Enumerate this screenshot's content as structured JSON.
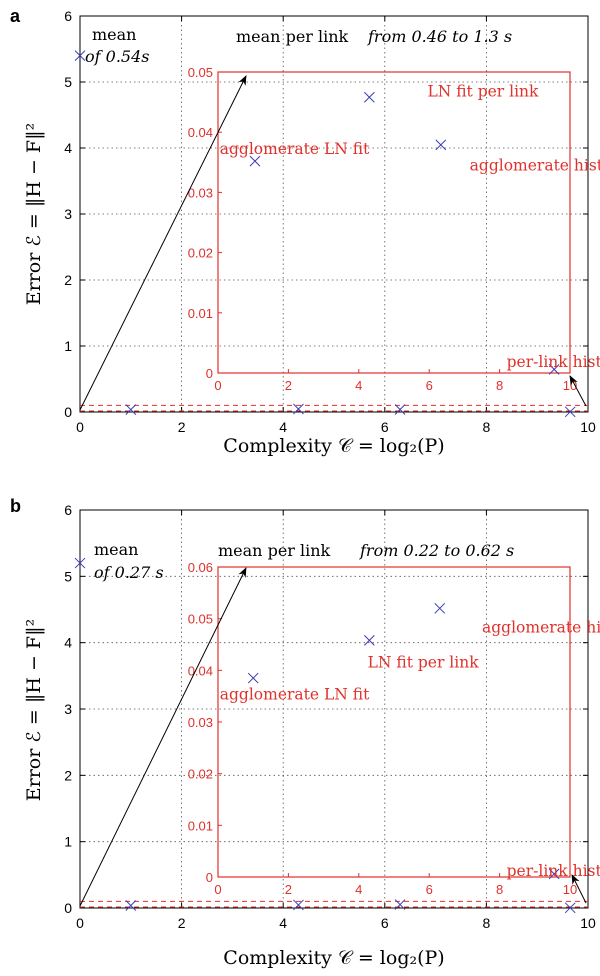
{
  "colors": {
    "axis": "#000000",
    "grid": "#555555",
    "marker": "#3b3bb5",
    "inset": "#e0312b"
  },
  "chart_data": [
    {
      "panel_label": "a",
      "type": "scatter",
      "xlabel": "Complexity 𝒞 = log₂(P)",
      "ylabel": "Error ℰ = ‖H − F‖²",
      "xlim": [
        0,
        10
      ],
      "ylim": [
        0,
        6
      ],
      "xticks": [
        0,
        2,
        4,
        6,
        8,
        10
      ],
      "yticks": [
        0,
        1,
        2,
        3,
        4,
        5,
        6
      ],
      "grid": true,
      "points": [
        {
          "x": 0,
          "y": 5.4
        },
        {
          "x": 1,
          "y": 0.036
        },
        {
          "x": 4.3,
          "y": 0.046
        },
        {
          "x": 6.3,
          "y": 0.038
        },
        {
          "x": 9.65,
          "y": 0.003
        }
      ],
      "annotations": [
        {
          "text": "mean",
          "style": "normal"
        },
        {
          "text": "of 0.54s",
          "style": "italic"
        },
        {
          "text": "mean per link",
          "style": "normal"
        },
        {
          "text": "from 0.46 to 1.3 s",
          "style": "italic"
        }
      ],
      "inset": {
        "xlim": [
          0,
          10
        ],
        "ylim": [
          0,
          0.05
        ],
        "xticks": [
          0,
          2,
          4,
          6,
          8,
          10
        ],
        "yticks": [
          0,
          0.01,
          0.02,
          0.03,
          0.04,
          0.05
        ],
        "ytick_labels": [
          "0",
          "0.01",
          "0.02",
          "0.03",
          "0.04",
          "0.05"
        ],
        "threshold": 0.1,
        "points": [
          {
            "x": 1.05,
            "y": 0.0352
          },
          {
            "x": 4.3,
            "y": 0.0458
          },
          {
            "x": 6.33,
            "y": 0.0379
          },
          {
            "x": 9.55,
            "y": 0.0006
          }
        ],
        "labels": [
          {
            "text": "agglomerate LN fit",
            "x": 0.05,
            "y": 0.0372
          },
          {
            "text": "LN fit per link",
            "x": 5.95,
            "y": 0.0468
          },
          {
            "text": "agglomerate hist.",
            "x": 7.15,
            "y": 0.0345
          },
          {
            "text": "per-link hist.",
            "x": 8.2,
            "y": 0.0018
          }
        ]
      }
    },
    {
      "panel_label": "b",
      "type": "scatter",
      "xlabel": "Complexity 𝒞 = log₂(P)",
      "ylabel": "Error ℰ = ‖H − F‖²",
      "xlim": [
        0,
        10
      ],
      "ylim": [
        0,
        6
      ],
      "xticks": [
        0,
        2,
        4,
        6,
        8,
        10
      ],
      "yticks": [
        0,
        1,
        2,
        3,
        4,
        5,
        6
      ],
      "grid": true,
      "points": [
        {
          "x": 0,
          "y": 5.2
        },
        {
          "x": 1,
          "y": 0.038
        },
        {
          "x": 4.3,
          "y": 0.046
        },
        {
          "x": 6.3,
          "y": 0.052
        },
        {
          "x": 9.65,
          "y": 0.003
        }
      ],
      "annotations": [
        {
          "text": "mean",
          "style": "normal"
        },
        {
          "text": "of 0.27 s",
          "style": "italic"
        },
        {
          "text": "mean per link",
          "style": "normal"
        },
        {
          "text": "from 0.22 to 0.62 s",
          "style": "italic"
        }
      ],
      "inset": {
        "xlim": [
          0,
          10
        ],
        "ylim": [
          0,
          0.06
        ],
        "xticks": [
          0,
          2,
          4,
          6,
          8,
          10
        ],
        "yticks": [
          0,
          0.01,
          0.02,
          0.03,
          0.04,
          0.05,
          0.06
        ],
        "ytick_labels": [
          "0",
          "0.01",
          "0.02",
          "0.03",
          "0.04",
          "0.05",
          "0.06"
        ],
        "threshold": 0.1,
        "points": [
          {
            "x": 1.0,
            "y": 0.0385
          },
          {
            "x": 4.3,
            "y": 0.0458
          },
          {
            "x": 6.3,
            "y": 0.052
          },
          {
            "x": 9.55,
            "y": 0.0006
          }
        ],
        "labels": [
          {
            "text": "agglomerate LN fit",
            "x": 0.05,
            "y": 0.0353
          },
          {
            "text": "LN fit per link",
            "x": 4.25,
            "y": 0.0415
          },
          {
            "text": "agglomerate hist.",
            "x": 7.5,
            "y": 0.0483
          },
          {
            "text": "per-link hist.",
            "x": 8.2,
            "y": 0.0012
          }
        ]
      }
    }
  ]
}
